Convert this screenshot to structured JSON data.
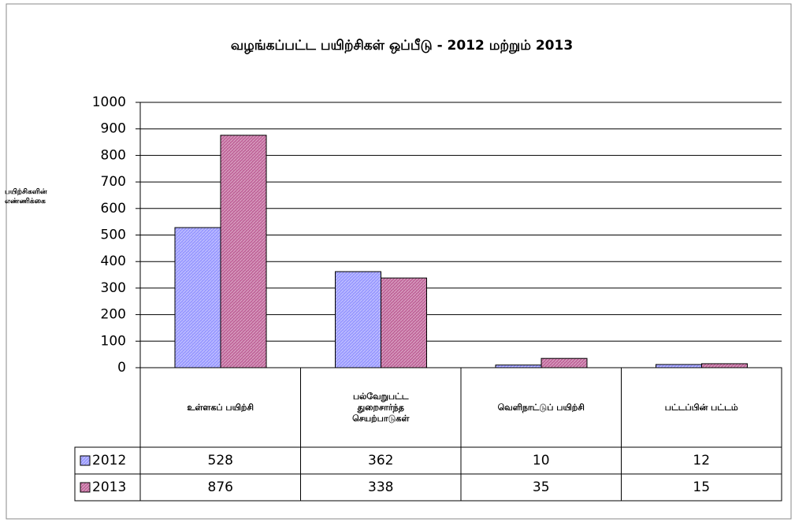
{
  "chart_data": {
    "type": "bar",
    "title": "வழங்கப்பட்ட பயிற்சிகள் ஒப்பீடு - 2012 மற்றும் 2013",
    "y_label": "பயிற்சிகளின்\nஎண்ணிக்கை",
    "categories": [
      "உள்ளகப் பயிற்சி",
      "பல்வேறுபட்ட\nதுறைசார்ந்த\nசெயற்பாடுகள்",
      "வெளிநாட்டுப் பயிற்சி",
      "பட்டப்பின் பட்டம்"
    ],
    "series": [
      {
        "name": "2012",
        "color": "#9999ff",
        "values": [
          528,
          362,
          10,
          12
        ]
      },
      {
        "name": "2013",
        "color": "#c0669a",
        "values": [
          876,
          338,
          35,
          15
        ]
      }
    ],
    "ylim": [
      0,
      1000
    ],
    "yticks": [
      0,
      100,
      200,
      300,
      400,
      500,
      600,
      700,
      800,
      900,
      1000
    ],
    "grid": true,
    "data_table": true
  }
}
